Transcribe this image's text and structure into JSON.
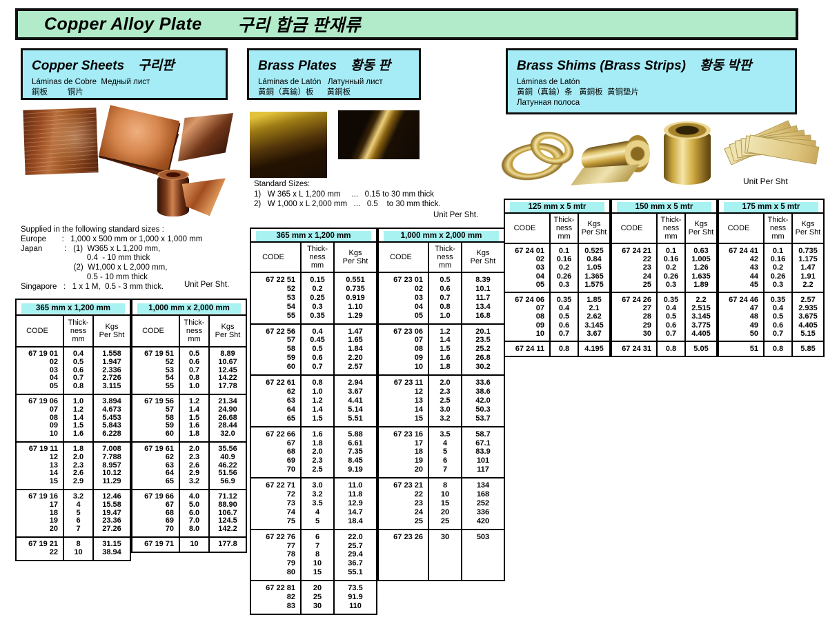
{
  "colors": {
    "title_bg": "#b2ebc9",
    "section_bg": "#a6ecf6",
    "band_bg": "#a9f2f2"
  },
  "title": {
    "en": "Copper Alloy Plate",
    "ko": "구리 합금 판재류"
  },
  "col_headers": {
    "code": "CODE",
    "thickness": "Thick-\nness\nmm",
    "kgs": "Kgs\nPer Sht"
  },
  "copper": {
    "heading_en": "Copper Sheets",
    "heading_ko": "구리판",
    "subtitle1": "Láminas de Cobre  Медный лист",
    "subtitle2": "銅板         铜片",
    "supplied_lines": [
      "Supplied in the following standard sizes :",
      "Europe       :   1,000 x 500 mm or 1,000 x 1,000 mm",
      "Japan          :   (1)  W365 x L 1,200 mm,",
      "                              0.4  - 10 mm thick",
      "                        (2)  W1,000 x L 2,000 mm,",
      "                              0.5 - 10 mm thick",
      "Singapore   :   1 x 1 M,  0.5 - 3 mm thick."
    ],
    "unit_note": "Unit Per Sht.",
    "tables": [
      {
        "size": "365 mm x 1,200 mm",
        "groups": [
          [
            [
              "67 19 01",
              "0.4",
              "1.558"
            ],
            [
              "02",
              "0.5",
              "1.947"
            ],
            [
              "03",
              "0.6",
              "2.336"
            ],
            [
              "04",
              "0.7",
              "2.726"
            ],
            [
              "05",
              "0.8",
              "3.115"
            ]
          ],
          [
            [
              "67 19 06",
              "1.0",
              "3.894"
            ],
            [
              "07",
              "1.2",
              "4.673"
            ],
            [
              "08",
              "1.4",
              "5.453"
            ],
            [
              "09",
              "1.5",
              "5.843"
            ],
            [
              "10",
              "1.6",
              "6.228"
            ]
          ],
          [
            [
              "67 19 11",
              "1.8",
              "7.008"
            ],
            [
              "12",
              "2.0",
              "7.788"
            ],
            [
              "13",
              "2.3",
              "8.957"
            ],
            [
              "14",
              "2.6",
              "10.12"
            ],
            [
              "15",
              "2.9",
              "11.29"
            ]
          ],
          [
            [
              "67 19 16",
              "3.2",
              "12.46"
            ],
            [
              "17",
              "4",
              "15.58"
            ],
            [
              "18",
              "5",
              "19.47"
            ],
            [
              "19",
              "6",
              "23.36"
            ],
            [
              "20",
              "7",
              "27.26"
            ]
          ],
          [
            [
              "67 19 21",
              "8",
              "31.15"
            ],
            [
              "22",
              "10",
              "38.94"
            ]
          ]
        ]
      },
      {
        "size": "1,000 mm x 2,000 mm",
        "groups": [
          [
            [
              "67 19 51",
              "0.5",
              "8.89"
            ],
            [
              "52",
              "0.6",
              "10.67"
            ],
            [
              "53",
              "0.7",
              "12.45"
            ],
            [
              "54",
              "0.8",
              "14.22"
            ],
            [
              "55",
              "1.0",
              "17.78"
            ]
          ],
          [
            [
              "67 19 56",
              "1.2",
              "21.34"
            ],
            [
              "57",
              "1.4",
              "24.90"
            ],
            [
              "58",
              "1.5",
              "26.68"
            ],
            [
              "59",
              "1.6",
              "28.44"
            ],
            [
              "60",
              "1.8",
              "32.0"
            ]
          ],
          [
            [
              "67 19 61",
              "2.0",
              "35.56"
            ],
            [
              "62",
              "2.3",
              "40.9"
            ],
            [
              "63",
              "2.6",
              "46.22"
            ],
            [
              "64",
              "2.9",
              "51.56"
            ],
            [
              "65",
              "3.2",
              "56.9"
            ]
          ],
          [
            [
              "67 19 66",
              "4.0",
              "71.12"
            ],
            [
              "67",
              "5.0",
              "88.90"
            ],
            [
              "68",
              "6.0",
              "106.7"
            ],
            [
              "69",
              "7.0",
              "124.5"
            ],
            [
              "70",
              "8.0",
              "142.2"
            ]
          ],
          [
            [
              "67 19 71",
              "10",
              "177.8"
            ]
          ]
        ]
      }
    ]
  },
  "brass_plates": {
    "heading_en": "Brass Plates",
    "heading_ko": "황동 판",
    "subtitle1": "Láminas de Latón   Латунный лист",
    "subtitle2": "黄銅（真鍮）板      黄銅板",
    "sizes_lines": [
      "Standard Sizes:",
      "1)   W 365 x L 1,200 mm     ...   0.15 to 30 mm thick",
      "2)   W 1,000 x L 2,000 mm   ...   0.5    to 30 mm thick."
    ],
    "unit_note": "Unit Per Sht.",
    "tables": [
      {
        "size": "365 mm x 1,200 mm",
        "groups": [
          [
            [
              "67 22 51",
              "0.15",
              "0.551"
            ],
            [
              "52",
              "0.2",
              "0.735"
            ],
            [
              "53",
              "0.25",
              "0.919"
            ],
            [
              "54",
              "0.3",
              "1.10"
            ],
            [
              "55",
              "0.35",
              "1.29"
            ]
          ],
          [
            [
              "67 22 56",
              "0.4",
              "1.47"
            ],
            [
              "57",
              "0.45",
              "1.65"
            ],
            [
              "58",
              "0.5",
              "1.84"
            ],
            [
              "59",
              "0.6",
              "2.20"
            ],
            [
              "60",
              "0.7",
              "2.57"
            ]
          ],
          [
            [
              "67 22 61",
              "0.8",
              "2.94"
            ],
            [
              "62",
              "1.0",
              "3.67"
            ],
            [
              "63",
              "1.2",
              "4.41"
            ],
            [
              "64",
              "1.4",
              "5.14"
            ],
            [
              "65",
              "1.5",
              "5.51"
            ]
          ],
          [
            [
              "67 22 66",
              "1.6",
              "5.88"
            ],
            [
              "67",
              "1.8",
              "6.61"
            ],
            [
              "68",
              "2.0",
              "7.35"
            ],
            [
              "69",
              "2.3",
              "8.45"
            ],
            [
              "70",
              "2.5",
              "9.19"
            ]
          ],
          [
            [
              "67 22 71",
              "3.0",
              "11.0"
            ],
            [
              "72",
              "3.2",
              "11.8"
            ],
            [
              "73",
              "3.5",
              "12.9"
            ],
            [
              "74",
              "4",
              "14.7"
            ],
            [
              "75",
              "5",
              "18.4"
            ]
          ],
          [
            [
              "67 22 76",
              "6",
              "22.0"
            ],
            [
              "77",
              "7",
              "25.7"
            ],
            [
              "78",
              "8",
              "29.4"
            ],
            [
              "79",
              "10",
              "36.7"
            ],
            [
              "80",
              "15",
              "55.1"
            ]
          ],
          [
            [
              "67 22 81",
              "20",
              "73.5"
            ],
            [
              "82",
              "25",
              "91.9"
            ],
            [
              "83",
              "30",
              "110"
            ]
          ]
        ]
      },
      {
        "size": "1,000 mm x 2,000 mm",
        "groups": [
          [
            [
              "67 23 01",
              "0.5",
              "8.39"
            ],
            [
              "02",
              "0.6",
              "10.1"
            ],
            [
              "03",
              "0.7",
              "11.7"
            ],
            [
              "04",
              "0.8",
              "13.4"
            ],
            [
              "05",
              "1.0",
              "16.8"
            ]
          ],
          [
            [
              "67 23 06",
              "1.2",
              "20.1"
            ],
            [
              "07",
              "1.4",
              "23.5"
            ],
            [
              "08",
              "1.5",
              "25.2"
            ],
            [
              "09",
              "1.6",
              "26.8"
            ],
            [
              "10",
              "1.8",
              "30.2"
            ]
          ],
          [
            [
              "67 23 11",
              "2.0",
              "33.6"
            ],
            [
              "12",
              "2.3",
              "38.6"
            ],
            [
              "13",
              "2.5",
              "42.0"
            ],
            [
              "14",
              "3.0",
              "50.3"
            ],
            [
              "15",
              "3.2",
              "53.7"
            ]
          ],
          [
            [
              "67 23 16",
              "3.5",
              "58.7"
            ],
            [
              "17",
              "4",
              "67.1"
            ],
            [
              "18",
              "5",
              "83.9"
            ],
            [
              "19",
              "6",
              "101"
            ],
            [
              "20",
              "7",
              "117"
            ]
          ],
          [
            [
              "67 23 21",
              "8",
              "134"
            ],
            [
              "22",
              "10",
              "168"
            ],
            [
              "23",
              "15",
              "252"
            ],
            [
              "24",
              "20",
              "336"
            ],
            [
              "25",
              "25",
              "420"
            ]
          ],
          [
            [
              "67 23 26",
              "30",
              "503"
            ],
            [
              "",
              "",
              ""
            ],
            [
              "",
              "",
              ""
            ],
            [
              "",
              "",
              ""
            ],
            [
              "",
              "",
              ""
            ]
          ]
        ]
      }
    ]
  },
  "brass_shims": {
    "heading_en": "Brass Shims (Brass Strips)",
    "heading_ko": "황동 박판",
    "subtitle1": "Láminas de Latón",
    "subtitle2": "黄銅（真鍮）条   黄銅板  黄铜垫片",
    "subtitle3": "Латунная полоса",
    "unit_note": "Unit Per Sht",
    "tables": [
      {
        "size": "125 mm x 5 mtr",
        "groups": [
          [
            [
              "67 24 01",
              "0.1",
              "0.525"
            ],
            [
              "02",
              "0.16",
              "0.84"
            ],
            [
              "03",
              "0.2",
              "1.05"
            ],
            [
              "04",
              "0.26",
              "1.365"
            ],
            [
              "05",
              "0.3",
              "1.575"
            ]
          ],
          [
            [
              "67 24 06",
              "0.35",
              "1.85"
            ],
            [
              "07",
              "0.4",
              "2.1"
            ],
            [
              "08",
              "0.5",
              "2.62"
            ],
            [
              "09",
              "0.6",
              "3.145"
            ],
            [
              "10",
              "0.7",
              "3.67"
            ]
          ],
          [
            [
              "67 24 11",
              "0.8",
              "4.195"
            ]
          ]
        ]
      },
      {
        "size": "150 mm x 5 mtr",
        "groups": [
          [
            [
              "67 24 21",
              "0.1",
              "0.63"
            ],
            [
              "22",
              "0.16",
              "1.005"
            ],
            [
              "23",
              "0.2",
              "1.26"
            ],
            [
              "24",
              "0.26",
              "1.635"
            ],
            [
              "25",
              "0.3",
              "1.89"
            ]
          ],
          [
            [
              "67 24 26",
              "0.35",
              "2.2"
            ],
            [
              "27",
              "0.4",
              "2.515"
            ],
            [
              "28",
              "0.5",
              "3.145"
            ],
            [
              "29",
              "0.6",
              "3.775"
            ],
            [
              "30",
              "0.7",
              "4.405"
            ]
          ],
          [
            [
              "67 24 31",
              "0.8",
              "5.05"
            ]
          ]
        ]
      },
      {
        "size": "175 mm x 5 mtr",
        "groups": [
          [
            [
              "67 24 41",
              "0.1",
              "0.735"
            ],
            [
              "42",
              "0.16",
              "1.175"
            ],
            [
              "43",
              "0.2",
              "1.47"
            ],
            [
              "44",
              "0.26",
              "1.91"
            ],
            [
              "45",
              "0.3",
              "2.2"
            ]
          ],
          [
            [
              "67 24 46",
              "0.35",
              "2.57"
            ],
            [
              "47",
              "0.4",
              "2.935"
            ],
            [
              "48",
              "0.5",
              "3.675"
            ],
            [
              "49",
              "0.6",
              "4.405"
            ],
            [
              "50",
              "0.7",
              "5.15"
            ]
          ],
          [
            [
              "51",
              "0.8",
              "5.85"
            ]
          ]
        ]
      }
    ]
  }
}
